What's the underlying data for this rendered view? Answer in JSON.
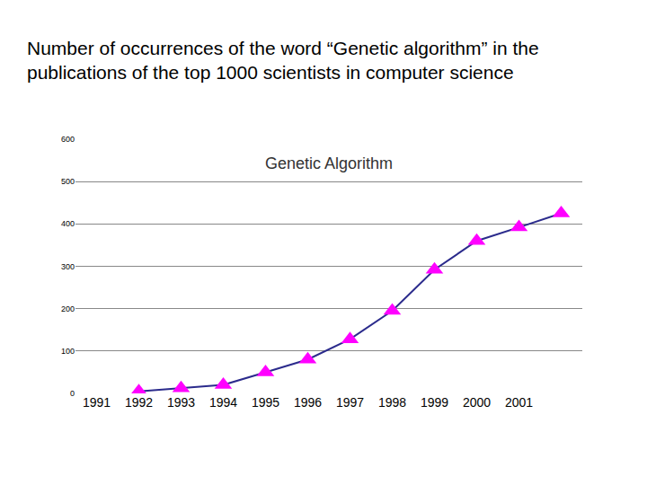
{
  "heading": "Number of occurrences of the word “Genetic algorithm” in the publications of the top 1000 scientists in computer science",
  "chart_data": {
    "type": "line",
    "title": "Genetic Algorithm",
    "categories": [
      "1991",
      "1992",
      "1993",
      "1994",
      "1995",
      "1996",
      "1997",
      "1998",
      "1999",
      "2000",
      "2001",
      null
    ],
    "color": "#2b2b8c",
    "series": [
      {
        "name": "Genetic Algorithm",
        "color": "#ff00ff",
        "marker": "triangle-up",
        "values": [
          null,
          5,
          12,
          20,
          50,
          80,
          128,
          195,
          292,
          360,
          392,
          425
        ]
      }
    ],
    "ylim": [
      0,
      600
    ],
    "yticks": [
      0,
      100,
      200,
      300,
      400,
      500,
      600
    ],
    "grid": true
  }
}
